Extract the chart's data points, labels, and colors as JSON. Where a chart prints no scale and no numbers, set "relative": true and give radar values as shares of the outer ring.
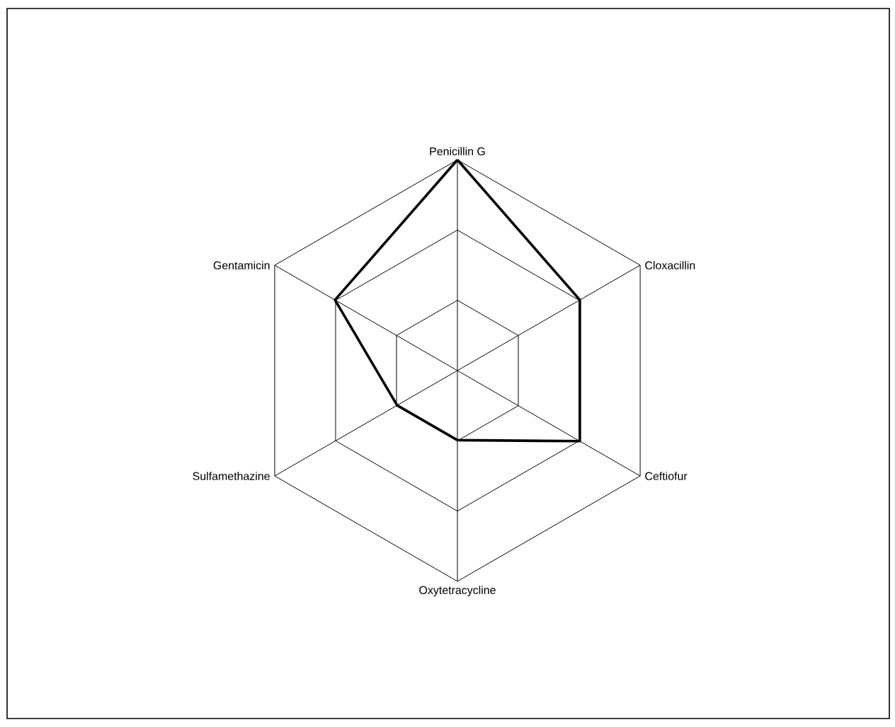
{
  "chart_data": {
    "type": "radar",
    "relative": true,
    "grid": true,
    "marker": "none",
    "categories": [
      "Penicillin G",
      "Cloxacillin",
      "Ceftiofur",
      "Oxytetracycline",
      "Sulfamethazine",
      "Gentamicin"
    ],
    "series": [
      {
        "color": "#000000",
        "values": [
          1,
          0.67,
          0.67,
          0.33,
          0.33,
          0.67
        ]
      }
    ]
  }
}
